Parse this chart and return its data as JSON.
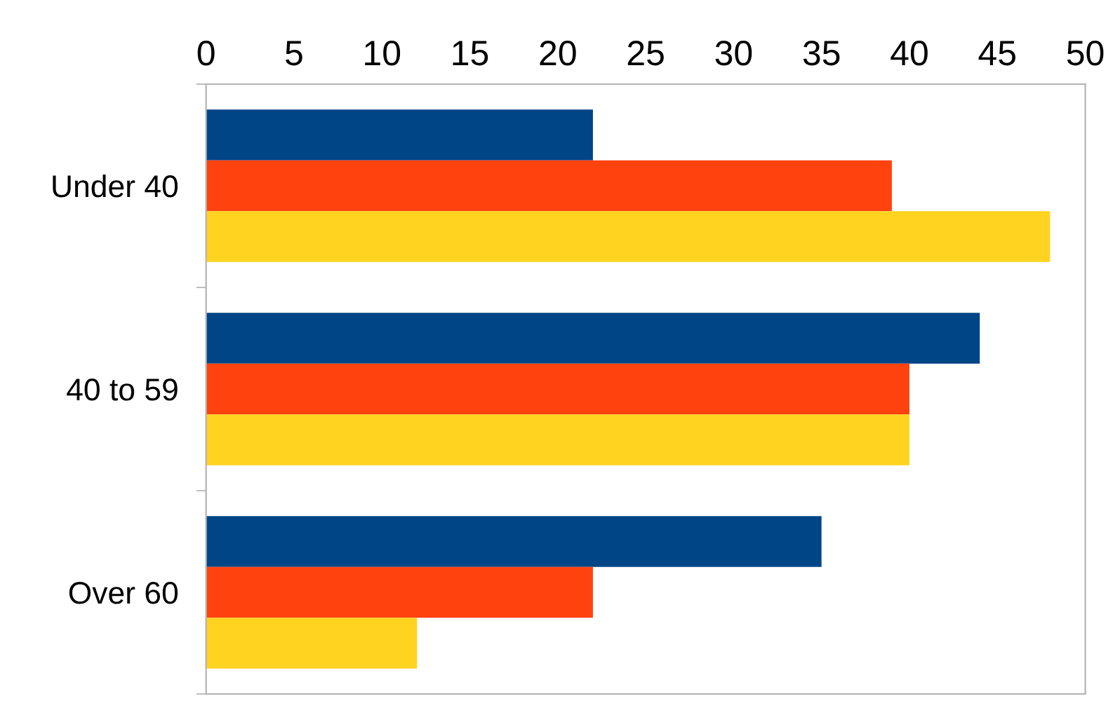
{
  "chart_data": {
    "type": "bar",
    "orientation": "horizontal",
    "categories": [
      "Under 40",
      "40 to 59",
      "Over 60"
    ],
    "series": [
      {
        "color": "#004586",
        "values": [
          22,
          44,
          35
        ]
      },
      {
        "color": "#ff420e",
        "values": [
          39,
          40,
          22
        ]
      },
      {
        "color": "#ffd320",
        "values": [
          48,
          40,
          12
        ]
      }
    ],
    "xlim": [
      0,
      50
    ],
    "xticks": [
      0,
      5,
      10,
      15,
      20,
      25,
      30,
      35,
      40,
      45,
      50
    ],
    "grid": false,
    "legend": false
  }
}
